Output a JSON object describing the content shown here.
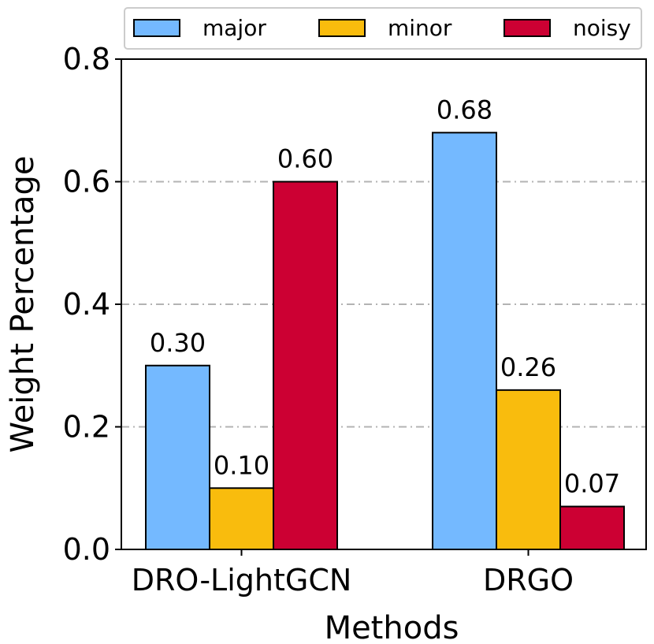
{
  "chart_data": {
    "type": "bar",
    "title": "",
    "xlabel": "Methods",
    "ylabel": "Weight Percentage",
    "ylim": [
      0,
      0.8
    ],
    "yticks": [
      "0.0",
      "0.2",
      "0.4",
      "0.6",
      "0.8"
    ],
    "categories": [
      "DRO-LightGCN",
      "DRGO"
    ],
    "series": [
      {
        "name": "major",
        "color": "#74b9ff",
        "values": [
          0.3,
          0.68
        ],
        "labels": [
          "0.30",
          "0.68"
        ]
      },
      {
        "name": "minor",
        "color": "#f9bc0d",
        "values": [
          0.1,
          0.26
        ],
        "labels": [
          "0.10",
          "0.26"
        ]
      },
      {
        "name": "noisy",
        "color": "#cc0033",
        "values": [
          0.6,
          0.07
        ],
        "labels": [
          "0.60",
          "0.07"
        ]
      }
    ],
    "grid": true,
    "legend_position": "top"
  }
}
